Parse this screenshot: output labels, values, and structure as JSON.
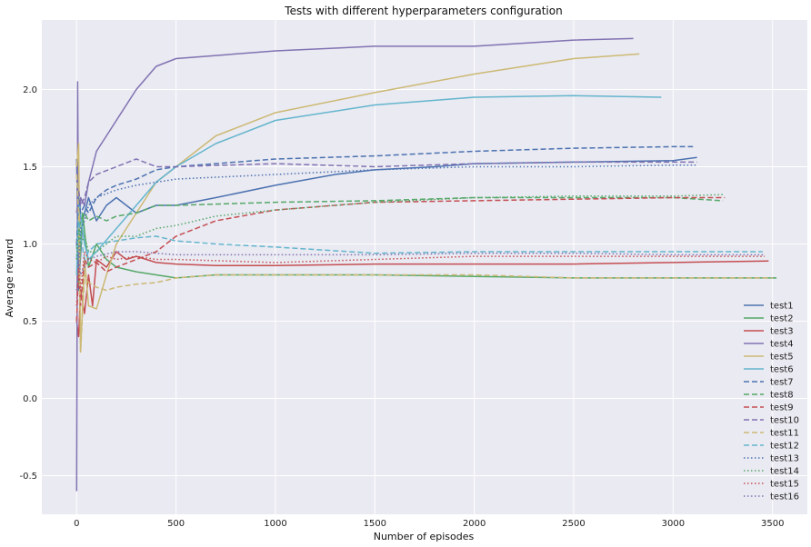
{
  "chart_data": {
    "type": "line",
    "title": "Tests with different hyperparameters configuration",
    "xlabel": "Number of episodes",
    "ylabel": "Average reward",
    "xlim": [
      -175,
      3675
    ],
    "ylim": [
      -0.75,
      2.45
    ],
    "xticks": [
      0,
      500,
      1000,
      1500,
      2000,
      2500,
      3000,
      3500
    ],
    "yticks": [
      -0.5,
      0.0,
      0.5,
      1.0,
      1.5,
      2.0
    ],
    "xtick_labels": [
      "0",
      "500",
      "1000",
      "1500",
      "2000",
      "2500",
      "3000",
      "3500"
    ],
    "ytick_labels": [
      "-0.5",
      "0.0",
      "0.5",
      "1.0",
      "1.5",
      "2.0"
    ],
    "grid": true,
    "legend": "bottom-right",
    "style": {
      "background": "#EAEAF2",
      "grid_color": "#FFFFFF"
    },
    "series": [
      {
        "name": "test1",
        "color": "#4C72B0",
        "dash": "solid",
        "x": [
          0,
          10,
          30,
          60,
          100,
          150,
          200,
          300,
          400,
          500,
          700,
          1000,
          1300,
          1500,
          1800,
          2000,
          2500,
          3000,
          3120
        ],
        "y": [
          1.55,
          0.7,
          1.15,
          1.3,
          1.15,
          1.25,
          1.3,
          1.2,
          1.25,
          1.25,
          1.3,
          1.38,
          1.45,
          1.48,
          1.5,
          1.52,
          1.53,
          1.54,
          1.56
        ]
      },
      {
        "name": "test2",
        "color": "#55A868",
        "dash": "solid",
        "x": [
          0,
          10,
          30,
          60,
          100,
          150,
          200,
          300,
          400,
          500,
          700,
          1000,
          1500,
          2000,
          2500,
          3000,
          3520
        ],
        "y": [
          1.0,
          0.75,
          1.2,
          0.85,
          1.0,
          0.9,
          0.85,
          0.82,
          0.8,
          0.78,
          0.8,
          0.8,
          0.8,
          0.79,
          0.78,
          0.78,
          0.78
        ]
      },
      {
        "name": "test3",
        "color": "#C44E52",
        "dash": "solid",
        "x": [
          0,
          10,
          20,
          40,
          60,
          80,
          100,
          150,
          200,
          250,
          300,
          400,
          500,
          700,
          1000,
          1500,
          2000,
          2500,
          3000,
          3480
        ],
        "y": [
          0.5,
          0.4,
          0.7,
          0.55,
          0.8,
          0.6,
          0.9,
          0.85,
          0.95,
          0.9,
          0.92,
          0.88,
          0.87,
          0.86,
          0.86,
          0.87,
          0.87,
          0.87,
          0.88,
          0.89
        ]
      },
      {
        "name": "test4",
        "color": "#8172B2",
        "dash": "solid",
        "x": [
          0,
          5,
          10,
          20,
          40,
          60,
          100,
          150,
          200,
          300,
          400,
          500,
          700,
          1000,
          1500,
          2000,
          2500,
          2800
        ],
        "y": [
          -0.6,
          2.05,
          0.9,
          1.3,
          1.25,
          1.4,
          1.6,
          1.7,
          1.8,
          2.0,
          2.15,
          2.2,
          2.22,
          2.25,
          2.28,
          2.28,
          2.32,
          2.33
        ]
      },
      {
        "name": "test5",
        "color": "#CCB974",
        "dash": "solid",
        "x": [
          0,
          10,
          20,
          40,
          60,
          100,
          150,
          200,
          300,
          400,
          500,
          700,
          1000,
          1500,
          2000,
          2500,
          2830
        ],
        "y": [
          1.5,
          1.65,
          0.3,
          0.9,
          0.6,
          0.58,
          0.8,
          1.0,
          1.2,
          1.4,
          1.5,
          1.7,
          1.85,
          1.98,
          2.1,
          2.2,
          2.23
        ]
      },
      {
        "name": "test6",
        "color": "#64B5CD",
        "dash": "solid",
        "x": [
          0,
          10,
          20,
          40,
          60,
          100,
          200,
          300,
          400,
          500,
          700,
          1000,
          1500,
          2000,
          2500,
          2940
        ],
        "y": [
          0.8,
          1.3,
          1.2,
          1.0,
          0.9,
          0.95,
          1.1,
          1.25,
          1.4,
          1.5,
          1.65,
          1.8,
          1.9,
          1.95,
          1.96,
          1.95
        ]
      },
      {
        "name": "test7",
        "color": "#4C72B0",
        "dash": "dashed",
        "x": [
          0,
          10,
          20,
          40,
          60,
          100,
          150,
          200,
          300,
          400,
          500,
          1000,
          1500,
          2000,
          2500,
          3000,
          3100
        ],
        "y": [
          1.0,
          1.3,
          1.2,
          1.25,
          1.2,
          1.3,
          1.35,
          1.38,
          1.42,
          1.48,
          1.5,
          1.55,
          1.57,
          1.6,
          1.62,
          1.63,
          1.63
        ]
      },
      {
        "name": "test8",
        "color": "#55A868",
        "dash": "dashed",
        "x": [
          0,
          10,
          20,
          40,
          60,
          100,
          150,
          200,
          300,
          400,
          500,
          1000,
          1500,
          2000,
          2500,
          3000,
          3250
        ],
        "y": [
          0.9,
          1.05,
          1.15,
          1.2,
          1.15,
          1.18,
          1.15,
          1.18,
          1.2,
          1.25,
          1.25,
          1.27,
          1.28,
          1.3,
          1.3,
          1.3,
          1.28
        ]
      },
      {
        "name": "test9",
        "color": "#C44E52",
        "dash": "dashed",
        "x": [
          0,
          10,
          20,
          40,
          60,
          100,
          150,
          200,
          300,
          400,
          500,
          700,
          1000,
          1500,
          2000,
          2500,
          3000,
          3260
        ],
        "y": [
          0.5,
          0.85,
          0.6,
          0.9,
          0.85,
          0.88,
          0.82,
          0.85,
          0.9,
          0.95,
          1.05,
          1.15,
          1.22,
          1.27,
          1.28,
          1.29,
          1.3,
          1.3
        ]
      },
      {
        "name": "test10",
        "color": "#8172B2",
        "dash": "dashed",
        "x": [
          0,
          10,
          20,
          40,
          60,
          100,
          200,
          300,
          400,
          500,
          1000,
          1500,
          2000,
          2500,
          3000,
          3120
        ],
        "y": [
          1.2,
          1.35,
          1.25,
          1.3,
          1.4,
          1.45,
          1.5,
          1.55,
          1.5,
          1.5,
          1.52,
          1.5,
          1.52,
          1.53,
          1.53,
          1.53
        ]
      },
      {
        "name": "test11",
        "color": "#CCB974",
        "dash": "dashed",
        "x": [
          0,
          10,
          20,
          40,
          60,
          100,
          150,
          200,
          300,
          400,
          500,
          700,
          1000,
          1500,
          2000,
          2500,
          3000,
          3500
        ],
        "y": [
          1.45,
          1.2,
          0.3,
          0.8,
          0.75,
          0.72,
          0.7,
          0.72,
          0.74,
          0.75,
          0.78,
          0.8,
          0.8,
          0.8,
          0.8,
          0.78,
          0.78,
          0.78
        ]
      },
      {
        "name": "test12",
        "color": "#64B5CD",
        "dash": "dashed",
        "x": [
          0,
          10,
          20,
          40,
          60,
          100,
          200,
          300,
          400,
          500,
          700,
          1000,
          1500,
          2000,
          2500,
          3000,
          3450
        ],
        "y": [
          0.9,
          1.15,
          1.05,
          0.9,
          0.95,
          1.0,
          1.02,
          1.04,
          1.05,
          1.02,
          1.0,
          0.98,
          0.94,
          0.95,
          0.95,
          0.95,
          0.95
        ]
      },
      {
        "name": "test13",
        "color": "#4C72B0",
        "dash": "dotted",
        "x": [
          0,
          10,
          20,
          40,
          60,
          100,
          200,
          300,
          400,
          500,
          1000,
          1500,
          2000,
          2500,
          3000,
          3120
        ],
        "y": [
          1.0,
          0.85,
          1.1,
          1.15,
          1.25,
          1.3,
          1.35,
          1.38,
          1.4,
          1.42,
          1.45,
          1.48,
          1.5,
          1.5,
          1.51,
          1.51
        ]
      },
      {
        "name": "test14",
        "color": "#55A868",
        "dash": "dotted",
        "x": [
          0,
          10,
          20,
          40,
          60,
          100,
          150,
          200,
          300,
          400,
          500,
          700,
          1000,
          1500,
          2000,
          2500,
          3000,
          3260
        ],
        "y": [
          0.9,
          1.1,
          1.0,
          1.05,
          0.95,
          0.95,
          1.0,
          1.05,
          1.05,
          1.1,
          1.12,
          1.18,
          1.22,
          1.27,
          1.3,
          1.31,
          1.31,
          1.32
        ]
      },
      {
        "name": "test15",
        "color": "#C44E52",
        "dash": "dotted",
        "x": [
          0,
          10,
          20,
          40,
          60,
          100,
          150,
          200,
          300,
          400,
          500,
          1000,
          1500,
          2000,
          2500,
          3000,
          3460
        ],
        "y": [
          0.6,
          0.9,
          0.7,
          0.95,
          0.9,
          0.88,
          0.92,
          0.9,
          0.92,
          0.9,
          0.9,
          0.88,
          0.9,
          0.92,
          0.92,
          0.92,
          0.92
        ]
      },
      {
        "name": "test16",
        "color": "#8172B2",
        "dash": "dotted",
        "x": [
          0,
          10,
          20,
          40,
          60,
          100,
          200,
          300,
          400,
          500,
          1000,
          1500,
          2000,
          2500,
          3000,
          3460
        ],
        "y": [
          0.7,
          0.9,
          0.8,
          0.85,
          0.9,
          0.92,
          0.95,
          0.95,
          0.94,
          0.93,
          0.93,
          0.93,
          0.94,
          0.94,
          0.93,
          0.93
        ]
      }
    ]
  }
}
